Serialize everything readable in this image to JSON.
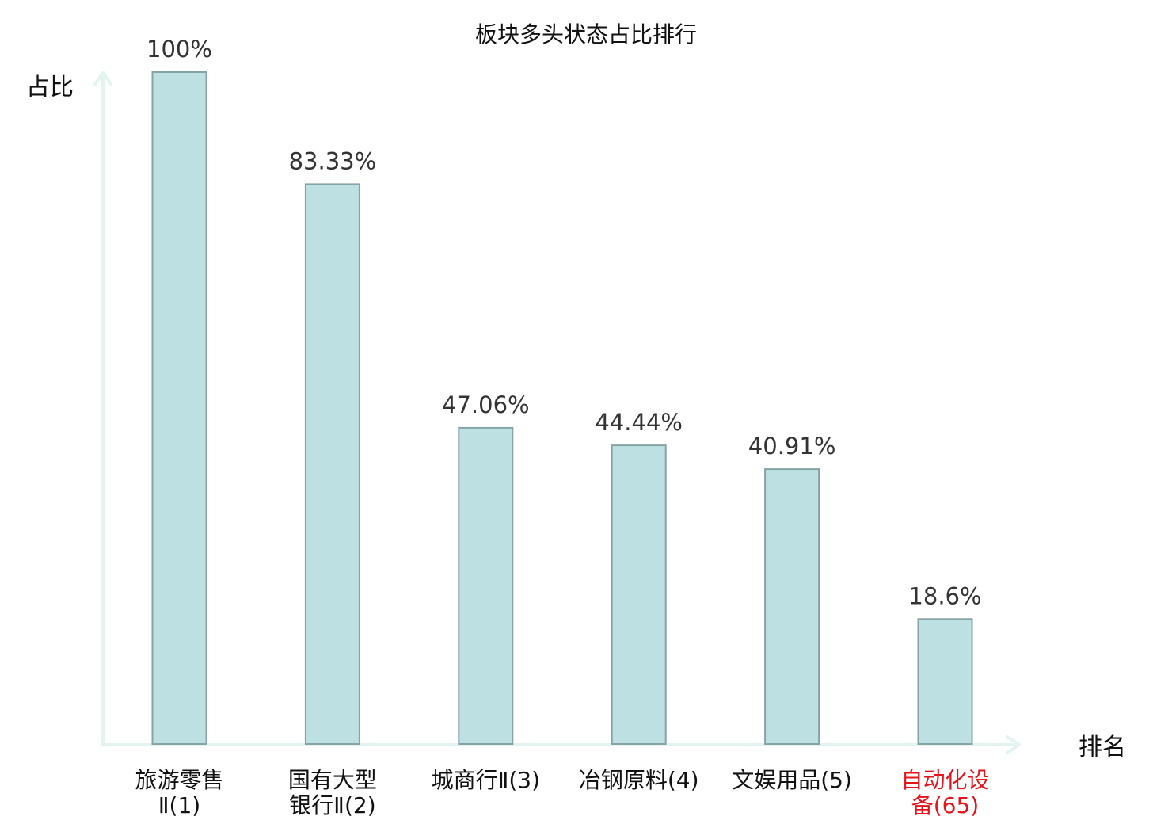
{
  "chart_data": {
    "type": "bar",
    "title": "板块多头状态占比排行",
    "ylabel": "占比",
    "xlabel": "排名",
    "ylim": [
      0,
      100
    ],
    "categories": [
      {
        "lines": [
          "旅游零售",
          "Ⅱ(1)"
        ],
        "highlight": false
      },
      {
        "lines": [
          "国有大型",
          "银行Ⅱ(2)"
        ],
        "highlight": false
      },
      {
        "lines": [
          "城商行Ⅱ(3)"
        ],
        "highlight": false
      },
      {
        "lines": [
          "冶钢原料(4)"
        ],
        "highlight": false
      },
      {
        "lines": [
          "文娱用品(5)"
        ],
        "highlight": false
      },
      {
        "lines": [
          "自动化设",
          "备(65)"
        ],
        "highlight": true
      }
    ],
    "values": [
      100,
      83.33,
      47.06,
      44.44,
      40.91,
      18.6
    ],
    "value_labels": [
      "100%",
      "83.33%",
      "47.06%",
      "44.44%",
      "40.91%",
      "18.6%"
    ],
    "grid": false,
    "legend": "none"
  },
  "colors": {
    "bar_fill": "#bde0e2",
    "bar_stroke": "#86a3a6",
    "axis": "#e3f3f0",
    "text": "#111111",
    "value_text": "#333333",
    "highlight_text": "#e3141b"
  }
}
